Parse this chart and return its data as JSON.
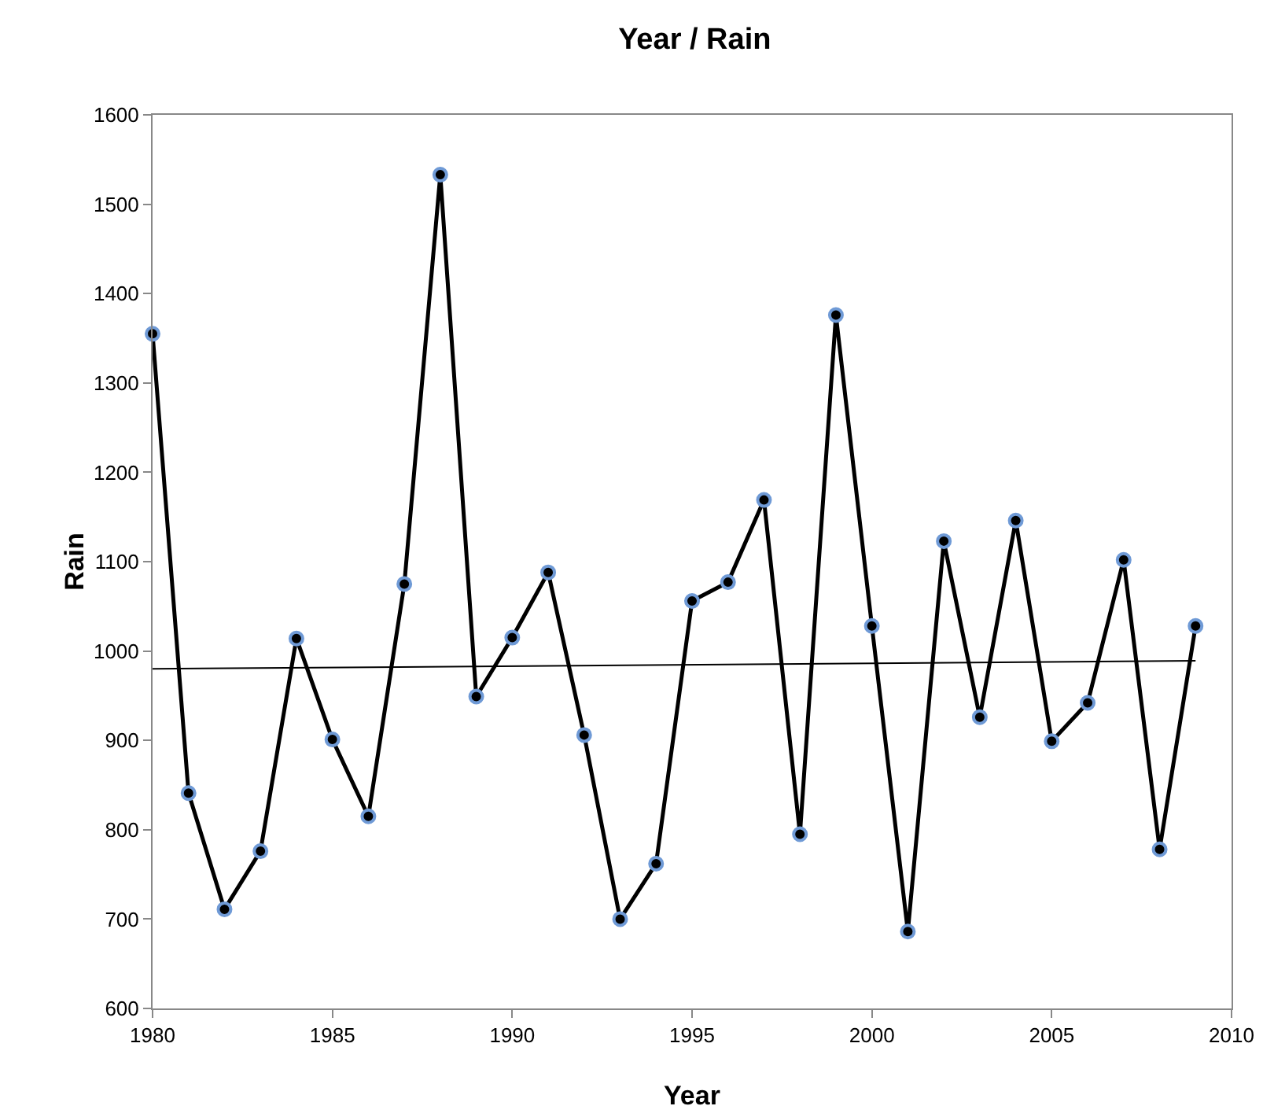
{
  "chart_data": {
    "type": "line",
    "title": "Year / Rain",
    "xlabel": "Year",
    "ylabel": "Rain",
    "x": [
      1980,
      1981,
      1982,
      1983,
      1984,
      1985,
      1986,
      1987,
      1988,
      1989,
      1990,
      1991,
      1992,
      1993,
      1994,
      1995,
      1996,
      1997,
      1998,
      1999,
      2000,
      2001,
      2002,
      2003,
      2004,
      2005,
      2006,
      2007,
      2008,
      2009
    ],
    "series": [
      {
        "color": "#000000",
        "marker": "circle",
        "values": [
          1355,
          841,
          711,
          776,
          1014,
          901,
          815,
          1075,
          1533,
          949,
          1015,
          1088,
          906,
          700,
          762,
          1056,
          1077,
          1169,
          795,
          1376,
          1028,
          686,
          1123,
          926,
          1146,
          899,
          942,
          1102,
          778,
          1028
        ]
      },
      {
        "type": "line",
        "color": "#000000",
        "marker": "none",
        "x": [
          1980,
          2009
        ],
        "values": [
          980,
          989
        ]
      }
    ],
    "xlim": [
      1980,
      2010
    ],
    "xticks": [
      1980,
      1985,
      1990,
      1995,
      2000,
      2005,
      2010
    ],
    "ylim": [
      600,
      1600
    ],
    "yticks": [
      600,
      700,
      800,
      900,
      1000,
      1100,
      1200,
      1300,
      1400,
      1500,
      1600
    ],
    "grid": false,
    "line_style": "solid"
  }
}
